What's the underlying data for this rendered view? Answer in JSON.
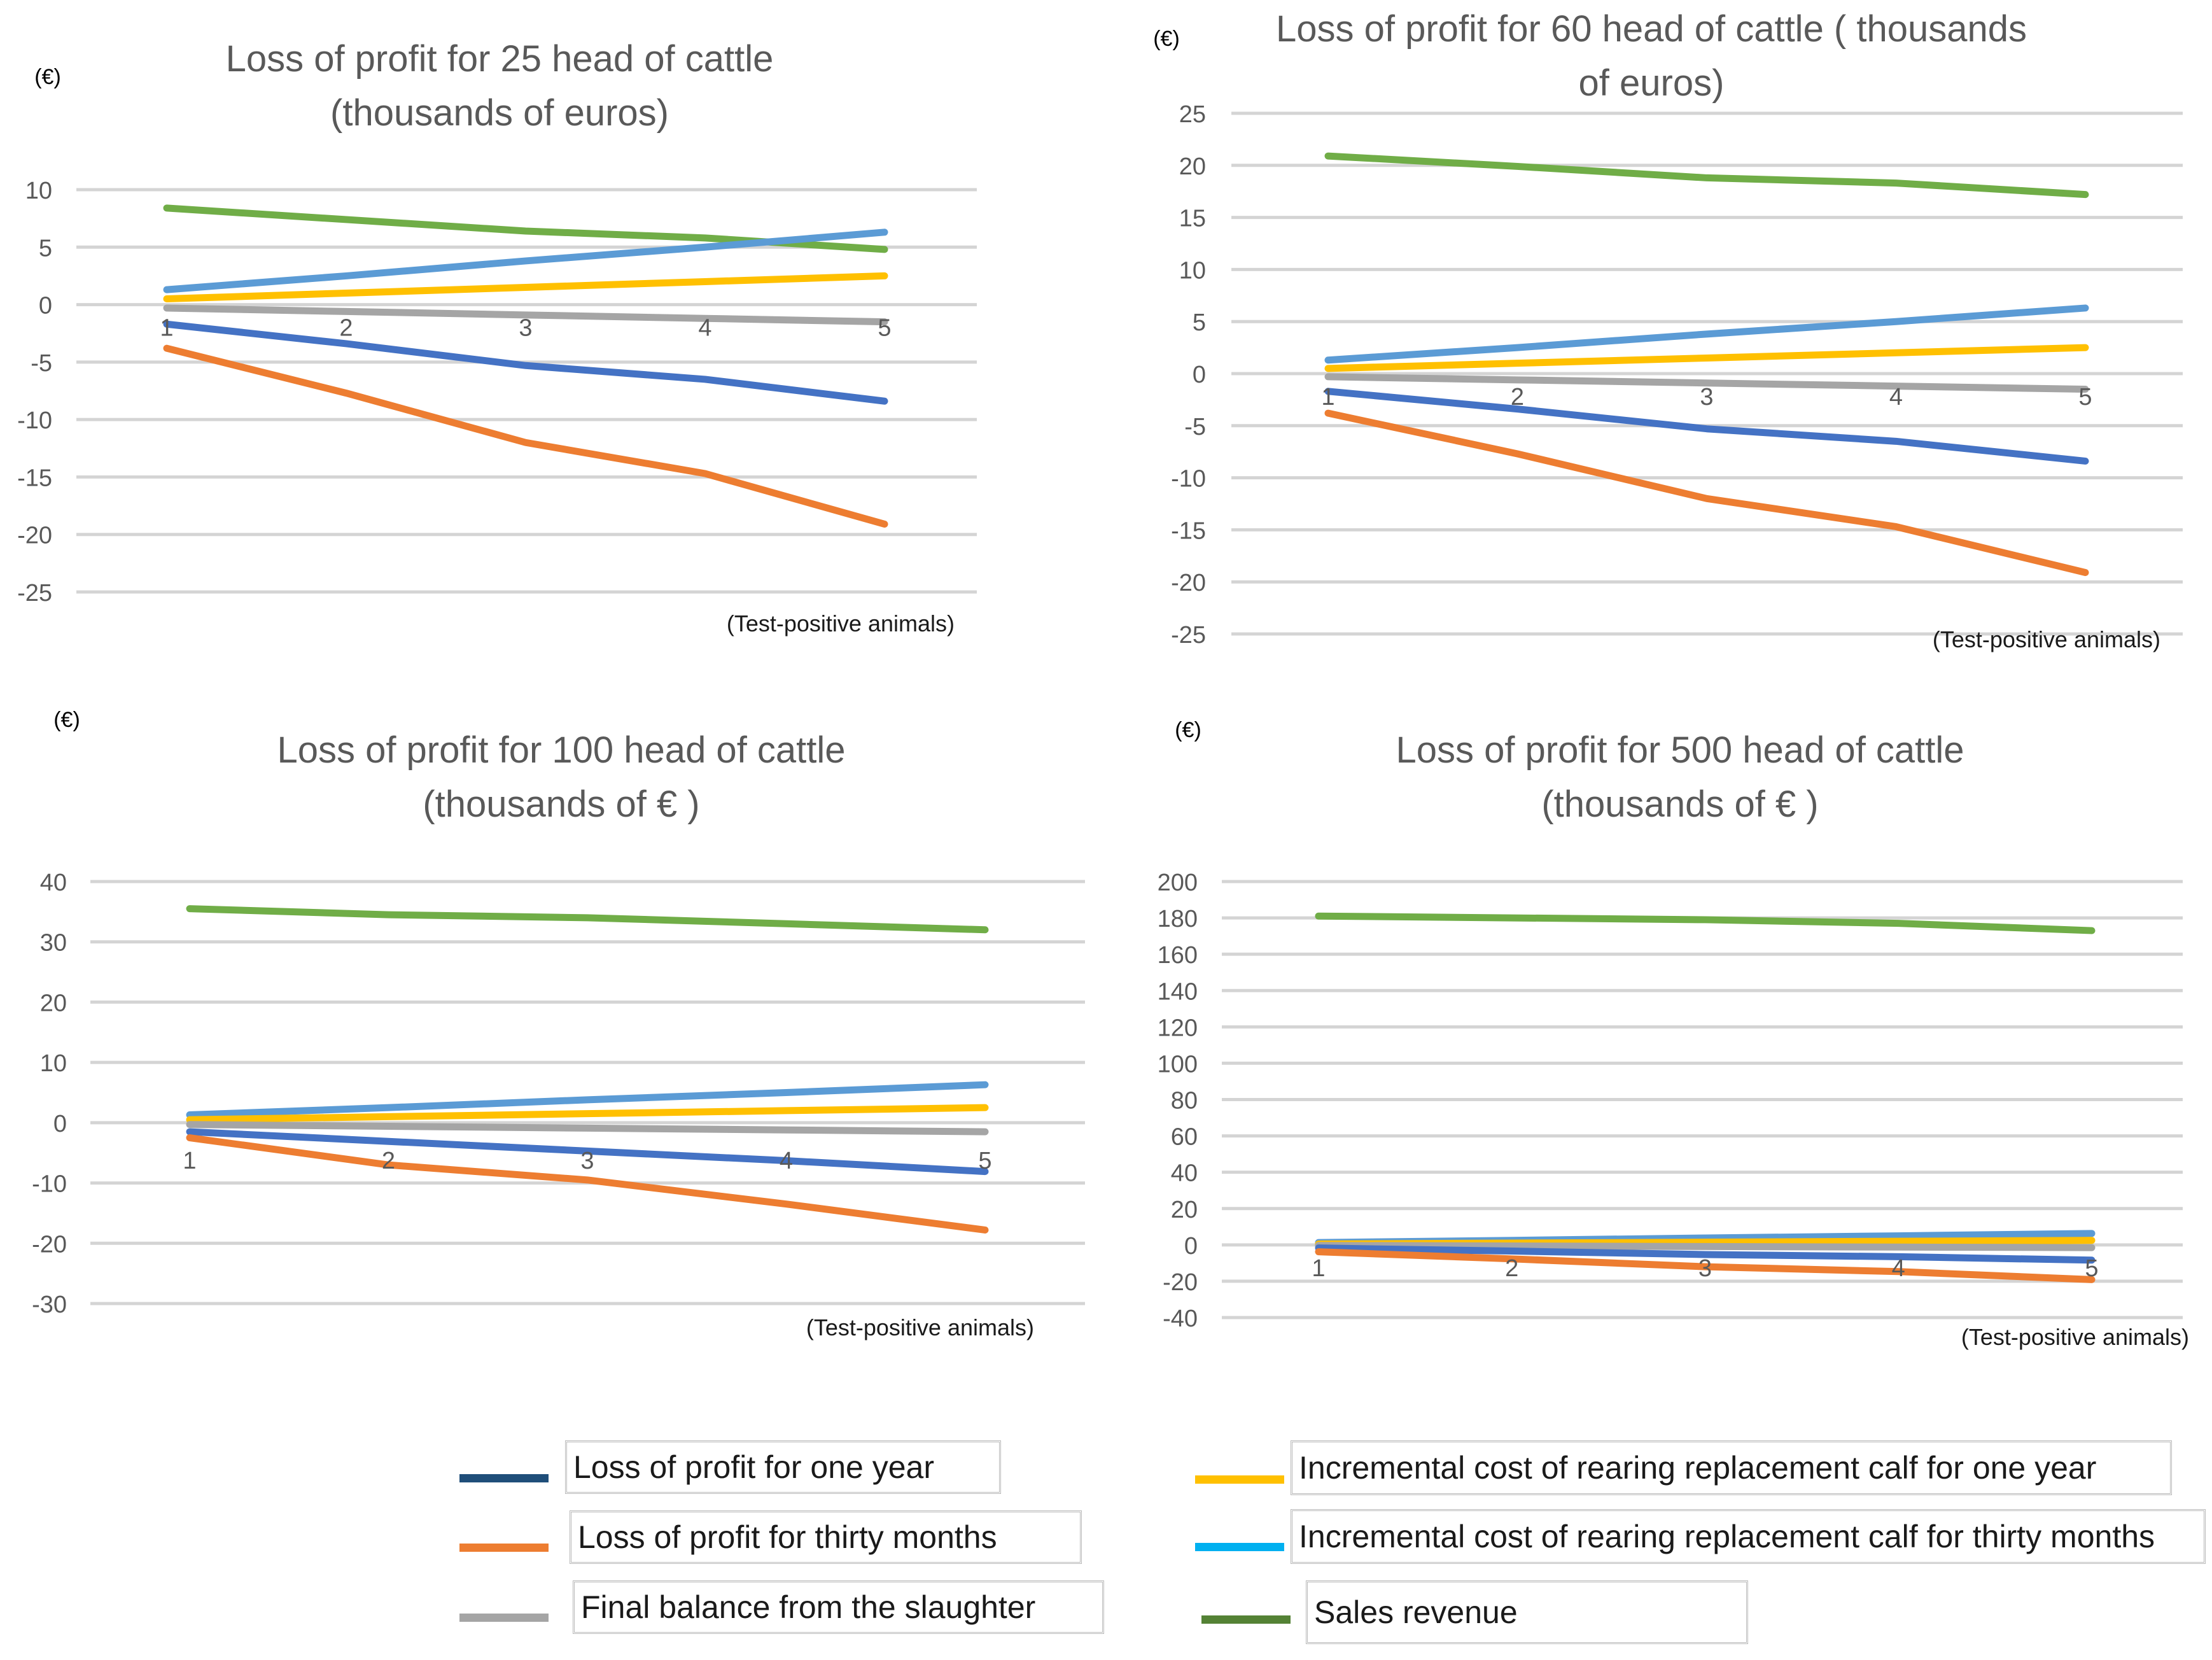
{
  "series_colors": {
    "loss_one_year": "#4472c4",
    "loss_thirty_months": "#ed7d31",
    "final_balance": "#a5a5a5",
    "rearing_one_year": "#ffc000",
    "rearing_thirty_months": "#5b9bd5",
    "sales_revenue": "#70ad47"
  },
  "legend": {
    "loss_one_year": "Loss of profit for one year",
    "loss_thirty_months": "Loss of profit for thirty months",
    "final_balance": "Final balance from the slaughter",
    "rearing_one_year": "Incremental cost of rearing replacement calf for one year",
    "rearing_thirty_months": "Incremental cost of rearing replacement calf for thirty months",
    "sales_revenue": "Sales revenue",
    "swatch_colors": {
      "loss_one_year": "#1f4e79",
      "loss_thirty_months": "#ed7d31",
      "final_balance": "#a5a5a5",
      "rearing_one_year": "#ffc000",
      "rearing_thirty_months": "#00b0f0",
      "sales_revenue": "#548235"
    }
  },
  "chart_data": [
    {
      "type": "line",
      "title": "Loss of profit for 25 head of cattle (thousands of euros)",
      "title_lines": [
        "Loss of profit for 25 head of cattle",
        "(thousands of euros)"
      ],
      "unit_label": "(€)",
      "xlabel": "(Test-positive animals)",
      "x": [
        1,
        2,
        3,
        4,
        5
      ],
      "ylim": [
        -25,
        10
      ],
      "yticks": [
        10,
        5,
        0,
        -5,
        -10,
        -15,
        -20,
        -25
      ],
      "series": [
        {
          "key": "sales_revenue",
          "name": "Sales revenue",
          "values": [
            8.4,
            7.4,
            6.4,
            5.8,
            4.8
          ]
        },
        {
          "key": "rearing_thirty_months",
          "name": "Incremental cost of rearing replacement calf for thirty months",
          "values": [
            1.3,
            2.5,
            3.8,
            5.0,
            6.3
          ]
        },
        {
          "key": "rearing_one_year",
          "name": "Incremental cost of rearing replacement calf for one year",
          "values": [
            0.5,
            1.0,
            1.5,
            2.0,
            2.5
          ]
        },
        {
          "key": "final_balance",
          "name": "Final balance from the slaughter",
          "values": [
            -0.3,
            -0.6,
            -0.9,
            -1.2,
            -1.5
          ]
        },
        {
          "key": "loss_one_year",
          "name": "Loss of profit for one year",
          "values": [
            -1.7,
            -3.4,
            -5.3,
            -6.5,
            -8.4
          ]
        },
        {
          "key": "loss_thirty_months",
          "name": "Loss of profit for thirty months",
          "values": [
            -3.8,
            -7.7,
            -12.0,
            -14.7,
            -19.1
          ]
        }
      ]
    },
    {
      "type": "line",
      "title": "Loss of profit for 60 head of cattle ( thousands of euros)",
      "title_lines": [
        "Loss of profit for 60 head of cattle ( thousands",
        "of euros)"
      ],
      "unit_label": "(€)",
      "xlabel": "(Test-positive animals)",
      "x": [
        1,
        2,
        3,
        4,
        5
      ],
      "ylim": [
        -25,
        25
      ],
      "yticks": [
        25,
        20,
        15,
        10,
        5,
        0,
        -5,
        -10,
        -15,
        -20,
        -25
      ],
      "series": [
        {
          "key": "sales_revenue",
          "name": "Sales revenue",
          "values": [
            20.9,
            19.9,
            18.8,
            18.3,
            17.2
          ]
        },
        {
          "key": "rearing_thirty_months",
          "name": "Incremental cost of rearing replacement calf for thirty months",
          "values": [
            1.3,
            2.5,
            3.8,
            5.0,
            6.3
          ]
        },
        {
          "key": "rearing_one_year",
          "name": "Incremental cost of rearing replacement calf for one year",
          "values": [
            0.5,
            1.0,
            1.5,
            2.0,
            2.5
          ]
        },
        {
          "key": "final_balance",
          "name": "Final balance from the slaughter",
          "values": [
            -0.3,
            -0.6,
            -0.9,
            -1.2,
            -1.5
          ]
        },
        {
          "key": "loss_one_year",
          "name": "Loss of profit for one year",
          "values": [
            -1.7,
            -3.4,
            -5.3,
            -6.5,
            -8.4
          ]
        },
        {
          "key": "loss_thirty_months",
          "name": "Loss of profit for thirty months",
          "values": [
            -3.8,
            -7.7,
            -12.0,
            -14.7,
            -19.1
          ]
        }
      ]
    },
    {
      "type": "line",
      "title": "Loss of profit for 100 head of cattle (thousands of € )",
      "title_lines": [
        "Loss of profit for 100 head of cattle",
        "(thousands of € )"
      ],
      "unit_label": "(€)",
      "xlabel": "(Test-positive animals)",
      "x": [
        1,
        2,
        3,
        4,
        5
      ],
      "ylim": [
        -30,
        40
      ],
      "yticks": [
        40,
        30,
        20,
        10,
        0,
        -10,
        -20,
        -30
      ],
      "series": [
        {
          "key": "sales_revenue",
          "name": "Sales revenue",
          "values": [
            35.5,
            34.5,
            34.0,
            33.0,
            32.0
          ]
        },
        {
          "key": "rearing_thirty_months",
          "name": "Incremental cost of rearing replacement calf for thirty months",
          "values": [
            1.3,
            2.5,
            3.8,
            5.0,
            6.3
          ]
        },
        {
          "key": "rearing_one_year",
          "name": "Incremental cost of rearing replacement calf for one year",
          "values": [
            0.5,
            1.0,
            1.5,
            2.0,
            2.5
          ]
        },
        {
          "key": "final_balance",
          "name": "Final balance from the slaughter",
          "values": [
            -0.3,
            -0.6,
            -0.9,
            -1.2,
            -1.5
          ]
        },
        {
          "key": "loss_one_year",
          "name": "Loss of profit for one year",
          "values": [
            -1.5,
            -3.1,
            -4.7,
            -6.3,
            -8.1
          ]
        },
        {
          "key": "loss_thirty_months",
          "name": "Loss of profit for thirty months",
          "values": [
            -2.5,
            -7.0,
            -9.5,
            -13.5,
            -17.8
          ]
        }
      ]
    },
    {
      "type": "line",
      "title": "Loss of profit for 500 head of cattle (thousands of € )",
      "title_lines": [
        "Loss of profit for 500 head of cattle",
        "(thousands of € )"
      ],
      "unit_label": "(€)",
      "xlabel": "(Test-positive animals)",
      "x": [
        1,
        2,
        3,
        4,
        5
      ],
      "ylim": [
        -40,
        200
      ],
      "yticks": [
        200,
        180,
        160,
        140,
        120,
        100,
        80,
        60,
        40,
        20,
        0,
        -20,
        -40
      ],
      "series": [
        {
          "key": "sales_revenue",
          "name": "Sales revenue",
          "values": [
            181,
            180,
            179,
            177,
            173
          ]
        },
        {
          "key": "rearing_thirty_months",
          "name": "Incremental cost of rearing replacement calf for thirty months",
          "values": [
            1.3,
            2.5,
            3.8,
            5.0,
            6.3
          ]
        },
        {
          "key": "rearing_one_year",
          "name": "Incremental cost of rearing replacement calf for one year",
          "values": [
            0.5,
            1.0,
            1.5,
            2.0,
            2.5
          ]
        },
        {
          "key": "final_balance",
          "name": "Final balance from the slaughter",
          "values": [
            -0.3,
            -0.6,
            -0.9,
            -1.2,
            -1.5
          ]
        },
        {
          "key": "loss_one_year",
          "name": "Loss of profit for one year",
          "values": [
            -1.7,
            -3.4,
            -5.3,
            -6.5,
            -8.4
          ]
        },
        {
          "key": "loss_thirty_months",
          "name": "Loss of profit for thirty months",
          "values": [
            -3.8,
            -7.7,
            -12.0,
            -14.7,
            -19.1
          ]
        }
      ]
    }
  ]
}
